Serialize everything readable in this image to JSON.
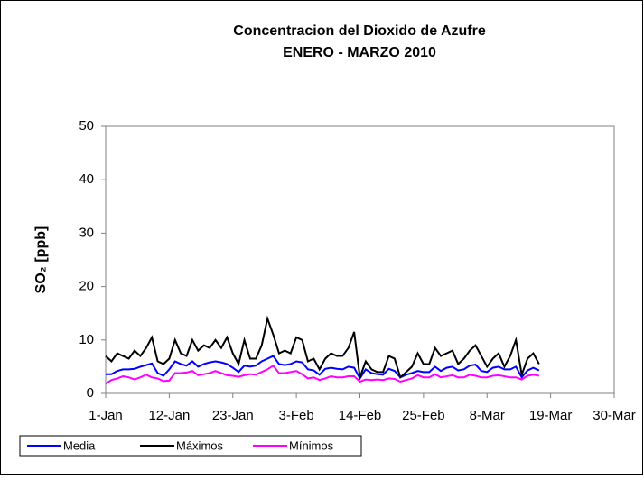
{
  "chart_data": {
    "type": "line",
    "title": "Concentracion del Dioxido de Azufre",
    "subtitle": "ENERO - MARZO  2010",
    "ylabel": "SO₂ [ppb]",
    "categories": [
      "1-Jan",
      null,
      null,
      null,
      null,
      null,
      null,
      null,
      null,
      null,
      null,
      "12-Jan",
      null,
      null,
      null,
      null,
      null,
      null,
      null,
      null,
      null,
      null,
      "23-Jan",
      null,
      null,
      null,
      null,
      null,
      null,
      null,
      null,
      null,
      null,
      "3-Feb",
      null,
      null,
      null,
      null,
      null,
      null,
      null,
      null,
      null,
      null,
      "14-Feb",
      null,
      null,
      null,
      null,
      null,
      null,
      null,
      null,
      null,
      null,
      "25-Feb",
      null,
      null,
      null,
      null,
      null,
      null,
      null,
      null,
      null,
      null,
      "8-Mar",
      null,
      null,
      null,
      null,
      null,
      null,
      null,
      null,
      null,
      null,
      "19-Mar",
      null,
      null,
      null,
      null,
      null,
      null,
      null,
      null,
      null,
      null,
      "30-Mar"
    ],
    "series": [
      {
        "name": "Media",
        "color": "#0000ff",
        "values": [
          3.6,
          3.6,
          4.2,
          4.5,
          4.5,
          4.6,
          5,
          5.3,
          5.6,
          3.8,
          3.3,
          4.5,
          6,
          5.5,
          5.2,
          6,
          5,
          5.5,
          5.8,
          6,
          5.8,
          5.5,
          4.8,
          4,
          5.2,
          5,
          5.2,
          6,
          6.5,
          7,
          5.5,
          5.3,
          5.5,
          6,
          5.8,
          4.5,
          4.3,
          3.5,
          4.6,
          4.8,
          4.6,
          4.5,
          5,
          4.8,
          2.8,
          4.5,
          3.8,
          3.6,
          3.5,
          4.6,
          4.2,
          3,
          3.5,
          3.8,
          4.2,
          4,
          4,
          5,
          4.2,
          4.8,
          5,
          4.3,
          4.5,
          5.2,
          5.4,
          4.2,
          4,
          4.8,
          5,
          4.5,
          4.5,
          5,
          3,
          4.3,
          4.8,
          4.3,
          null,
          null,
          null,
          null,
          null,
          null,
          null,
          null,
          null,
          null,
          null,
          null,
          null
        ]
      },
      {
        "name": "Máximos",
        "color": "#000000",
        "values": [
          7,
          6,
          7.5,
          7,
          6.5,
          8,
          7,
          8.5,
          10.5,
          6,
          5.5,
          6.5,
          10,
          7.5,
          7,
          10,
          8,
          9,
          8.5,
          10,
          8.5,
          10.5,
          7.5,
          5.5,
          10,
          6.5,
          6.5,
          9,
          14,
          11,
          7.5,
          8,
          7.5,
          10.5,
          10,
          6,
          6.5,
          4.5,
          6.5,
          7.5,
          7,
          7,
          8.5,
          11.5,
          3,
          6,
          4.5,
          4,
          4,
          7,
          6.5,
          3,
          4,
          5,
          7.5,
          5.5,
          5.5,
          8.5,
          7,
          7.5,
          8,
          5.5,
          6.5,
          8,
          9,
          7,
          5,
          6.5,
          7.5,
          5,
          7,
          10,
          3.5,
          6.5,
          7.5,
          5.5,
          null,
          null,
          null,
          null,
          null,
          null,
          null,
          null,
          null,
          null,
          null,
          null,
          null
        ]
      },
      {
        "name": "Mínimos",
        "color": "#ff00ff",
        "values": [
          1.8,
          2.5,
          2.8,
          3.2,
          3,
          2.6,
          3,
          3.5,
          3,
          2.8,
          2.3,
          2.4,
          3.8,
          3.8,
          3.9,
          4.2,
          3.4,
          3.6,
          3.8,
          4.2,
          3.8,
          3.4,
          3.3,
          3.1,
          3.4,
          3.6,
          3.5,
          4,
          4.5,
          5.2,
          3.8,
          3.8,
          4,
          4.2,
          3.6,
          2.8,
          3,
          2.5,
          2.8,
          3.2,
          3,
          3,
          3.2,
          3.2,
          2.2,
          2.6,
          2.5,
          2.6,
          2.5,
          2.8,
          2.7,
          2.2,
          2.5,
          2.8,
          3.4,
          3,
          3,
          3.6,
          3,
          3.2,
          3.4,
          3,
          3,
          3.5,
          3.3,
          3,
          3,
          3.3,
          3.4,
          3.2,
          3,
          3,
          2.6,
          3.3,
          3.5,
          3.3,
          null,
          null,
          null,
          null,
          null,
          null,
          null,
          null,
          null,
          null,
          null,
          null,
          null
        ]
      }
    ],
    "ylim": [
      0,
      50
    ],
    "yticks": [
      0,
      10,
      20,
      30,
      40,
      50
    ],
    "grid": false,
    "legend": "bottom-left"
  }
}
